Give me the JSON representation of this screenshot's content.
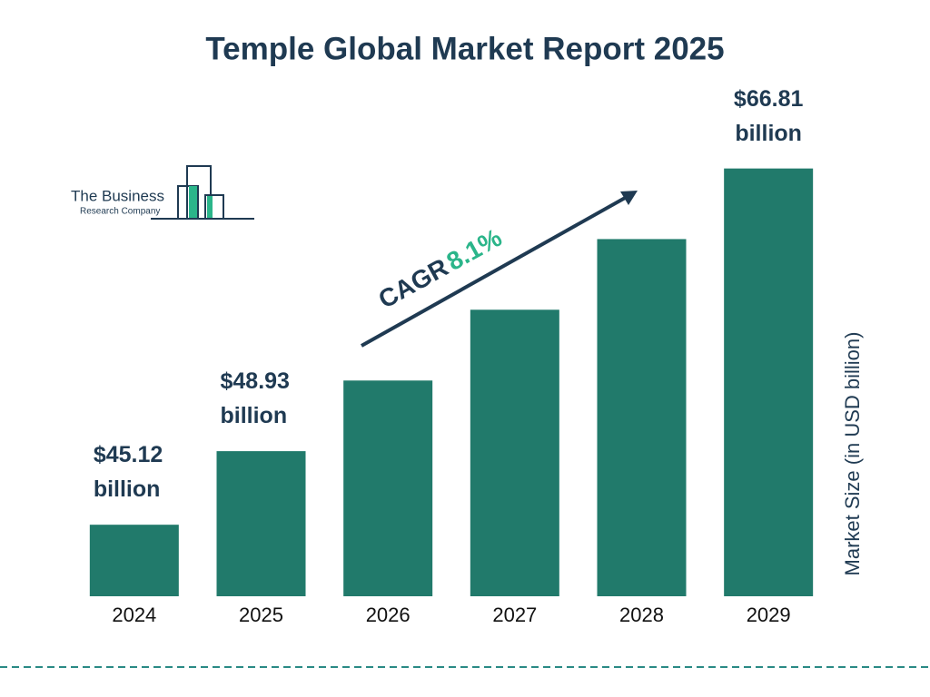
{
  "chart_data": {
    "type": "bar",
    "title": "Temple Global Market Report 2025",
    "categories": [
      "2024",
      "2025",
      "2026",
      "2027",
      "2028",
      "2029"
    ],
    "values": [
      45.12,
      48.93,
      52.89,
      57.18,
      61.81,
      66.81
    ],
    "value_labels": [
      "$45.12 billion",
      "$48.93 billion",
      null,
      null,
      null,
      "$66.81 billion"
    ],
    "color": "#217a6b",
    "ylim": [
      41.7,
      70
    ],
    "log_scale": true,
    "y_axis_label": "Market Size (in USD billion)",
    "cagr_label": "CAGR",
    "cagr_value": "8.1%",
    "cagr_color": "#2bb58a"
  },
  "logo": {
    "line1": "The Business",
    "line2": "Research Company"
  }
}
